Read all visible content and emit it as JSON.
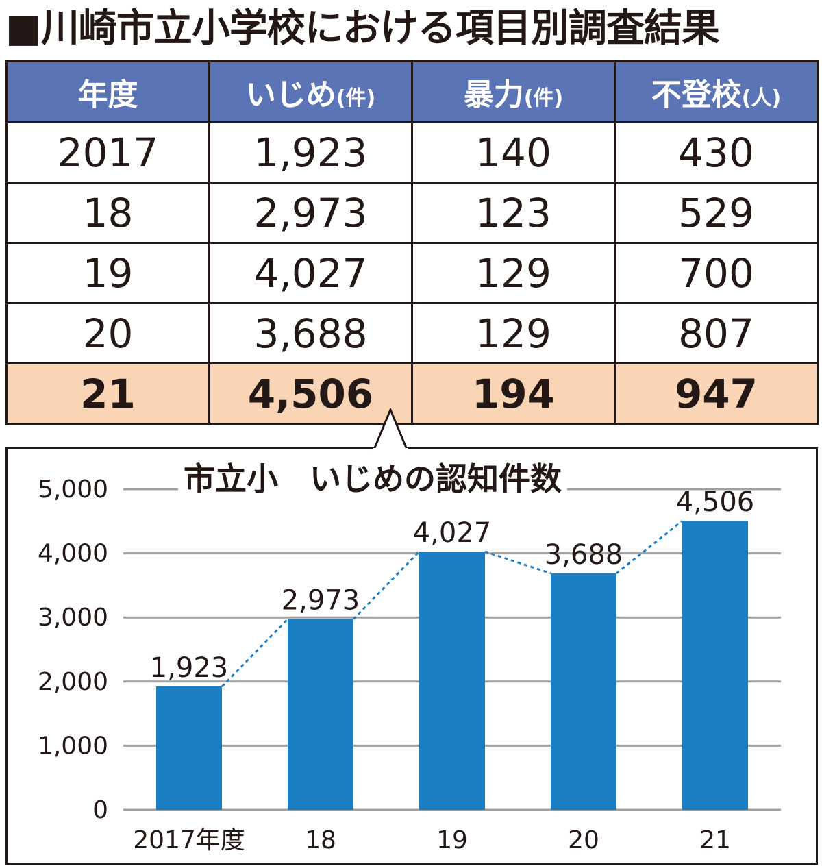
{
  "page": {
    "title": "■川崎市立小学校における項目別調査結果"
  },
  "table": {
    "headers": [
      {
        "label": "年度",
        "unit": ""
      },
      {
        "label": "いじめ",
        "unit": "(件)"
      },
      {
        "label": "暴力",
        "unit": "(件)"
      },
      {
        "label": "不登校",
        "unit": "(人)"
      }
    ],
    "rows": [
      [
        "2017",
        "1,923",
        "140",
        "430"
      ],
      [
        "18",
        "2,973",
        "123",
        "529"
      ],
      [
        "19",
        "4,027",
        "129",
        "700"
      ],
      [
        "20",
        "3,688",
        "129",
        "807"
      ],
      [
        "21",
        "4,506",
        "194",
        "947"
      ]
    ]
  },
  "colors": {
    "header_bg": "#5b74b6",
    "highlight_bg": "#f9d5b6",
    "bar": "#1a7fc4",
    "trend_line": "#1a7fc4",
    "grid": "#a0a0a0"
  },
  "chart_data": {
    "type": "bar",
    "title": "市立小　いじめの認知件数",
    "categories": [
      "2017年度",
      "18",
      "19",
      "20",
      "21"
    ],
    "values": [
      1923,
      2973,
      4027,
      3688,
      4506
    ],
    "value_labels": [
      "1,923",
      "2,973",
      "4,027",
      "3,688",
      "4,506"
    ],
    "yticks": [
      "0",
      "1,000",
      "2,000",
      "3,000",
      "4,000",
      "5,000"
    ],
    "ylim": [
      0,
      5000
    ],
    "grid": true,
    "trend_line": "dotted"
  }
}
